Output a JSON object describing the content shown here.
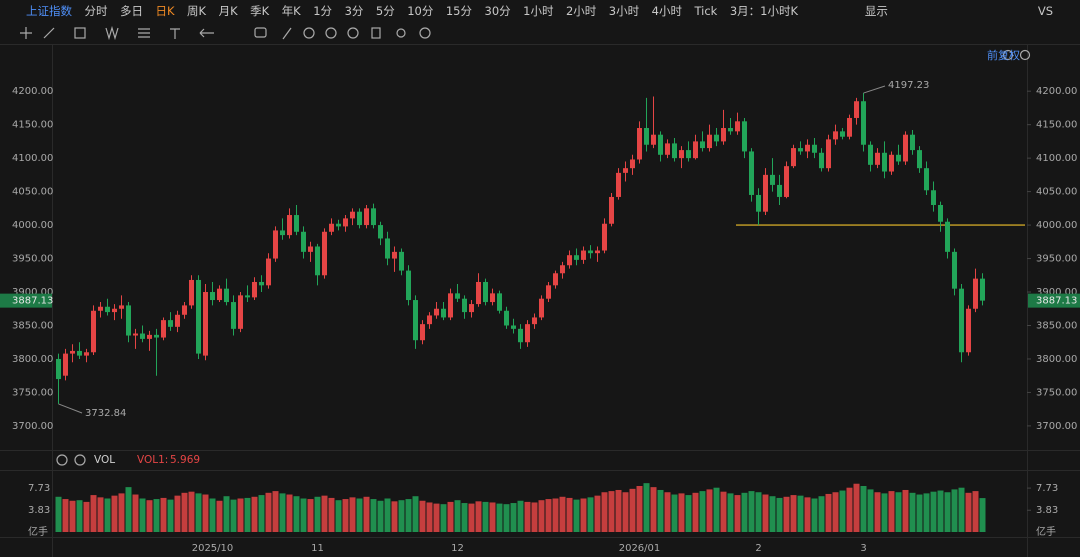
{
  "toolbar": {
    "symbol": "上证指数",
    "periods": [
      "分时",
      "多日",
      "日K",
      "周K",
      "月K",
      "季K",
      "年K",
      "1分",
      "3分",
      "5分",
      "10分",
      "15分",
      "30分",
      "1小时",
      "2小时",
      "3小时",
      "4小时",
      "Tick",
      "3月：1小时K"
    ],
    "display": "显示",
    "compare": "VS",
    "adjust": "前复权"
  },
  "chart_data": {
    "type": "candlestick",
    "up_color": "#e54545",
    "down_color": "#22a559",
    "ylim": [
      3664,
      4269
    ],
    "yticks": [
      {
        "value": 3700,
        "label": "3700.00"
      },
      {
        "value": 3750,
        "label": "3750.00"
      },
      {
        "value": 3800,
        "label": "3800.00"
      },
      {
        "value": 3850,
        "label": "3850.00"
      },
      {
        "value": 3900,
        "label": "3900.00"
      },
      {
        "value": 3950,
        "label": "3950.00"
      },
      {
        "value": 4000,
        "label": "4000.00"
      },
      {
        "value": 4050,
        "label": "4050.00"
      },
      {
        "value": 4100,
        "label": "4100.00"
      },
      {
        "value": 4150,
        "label": "4150.00"
      },
      {
        "value": 4200,
        "label": "4200.00"
      }
    ],
    "hline": {
      "value": 4000,
      "color": "#c9a227"
    },
    "categories": [
      null,
      null,
      null,
      null,
      null,
      null,
      null,
      null,
      null,
      null,
      null,
      null,
      null,
      null,
      null,
      null,
      null,
      null,
      null,
      null,
      null,
      null,
      "2025/10",
      null,
      null,
      null,
      null,
      null,
      null,
      null,
      null,
      null,
      null,
      null,
      null,
      null,
      null,
      "11",
      null,
      null,
      null,
      null,
      null,
      null,
      null,
      null,
      null,
      null,
      null,
      null,
      null,
      null,
      null,
      null,
      null,
      null,
      null,
      "12",
      null,
      null,
      null,
      null,
      null,
      null,
      null,
      null,
      null,
      null,
      null,
      null,
      null,
      null,
      null,
      null,
      null,
      null,
      null,
      null,
      null,
      null,
      null,
      null,
      null,
      "2026/01",
      null,
      null,
      null,
      null,
      null,
      null,
      null,
      null,
      null,
      null,
      null,
      null,
      null,
      null,
      null,
      null,
      "2",
      null,
      null,
      null,
      null,
      null,
      null,
      null,
      null,
      null,
      null,
      null,
      null,
      null,
      null,
      "3",
      null,
      null,
      null,
      null,
      null,
      null,
      null,
      null,
      null,
      null,
      null,
      null,
      null,
      null,
      null,
      null,
      null
    ],
    "candles": [
      [
        3800,
        3808,
        3732.84,
        3770
      ],
      [
        3775,
        3815,
        3768,
        3808
      ],
      [
        3808,
        3822,
        3795,
        3812
      ],
      [
        3812,
        3825,
        3800,
        3805
      ],
      [
        3805,
        3815,
        3795,
        3810
      ],
      [
        3810,
        3880,
        3806,
        3872
      ],
      [
        3872,
        3885,
        3862,
        3878
      ],
      [
        3878,
        3890,
        3865,
        3870
      ],
      [
        3870,
        3882,
        3858,
        3875
      ],
      [
        3875,
        3895,
        3860,
        3880
      ],
      [
        3880,
        3885,
        3825,
        3835
      ],
      [
        3835,
        3845,
        3815,
        3838
      ],
      [
        3838,
        3850,
        3825,
        3830
      ],
      [
        3830,
        3842,
        3812,
        3836
      ],
      [
        3836,
        3845,
        3775,
        3832
      ],
      [
        3832,
        3862,
        3828,
        3858
      ],
      [
        3858,
        3870,
        3842,
        3848
      ],
      [
        3848,
        3872,
        3840,
        3866
      ],
      [
        3866,
        3885,
        3860,
        3880
      ],
      [
        3880,
        3925,
        3875,
        3918
      ],
      [
        3918,
        3925,
        3800,
        3808
      ],
      [
        3805,
        3912,
        3798,
        3900
      ],
      [
        3900,
        3915,
        3880,
        3888
      ],
      [
        3888,
        3910,
        3885,
        3905
      ],
      [
        3905,
        3920,
        3880,
        3885
      ],
      [
        3885,
        3895,
        3835,
        3845
      ],
      [
        3845,
        3900,
        3840,
        3895
      ],
      [
        3895,
        3910,
        3885,
        3892
      ],
      [
        3892,
        3922,
        3888,
        3915
      ],
      [
        3915,
        3925,
        3900,
        3910
      ],
      [
        3910,
        3958,
        3905,
        3950
      ],
      [
        3950,
        3998,
        3945,
        3992
      ],
      [
        3992,
        4010,
        3978,
        3985
      ],
      [
        3985,
        4025,
        3980,
        4015
      ],
      [
        4015,
        4030,
        3985,
        3990
      ],
      [
        3990,
        3998,
        3950,
        3960
      ],
      [
        3960,
        3975,
        3945,
        3968
      ],
      [
        3968,
        3972,
        3910,
        3925
      ],
      [
        3925,
        3995,
        3920,
        3990
      ],
      [
        3990,
        4010,
        3985,
        4002
      ],
      [
        4002,
        4008,
        3992,
        3998
      ],
      [
        3998,
        4015,
        3990,
        4010
      ],
      [
        4010,
        4025,
        4000,
        4020
      ],
      [
        4020,
        4025,
        3995,
        4000
      ],
      [
        4000,
        4030,
        3995,
        4025
      ],
      [
        4025,
        4032,
        3995,
        4000
      ],
      [
        4000,
        4005,
        3970,
        3980
      ],
      [
        3980,
        3990,
        3940,
        3950
      ],
      [
        3950,
        3968,
        3930,
        3960
      ],
      [
        3960,
        3965,
        3925,
        3932
      ],
      [
        3932,
        3940,
        3880,
        3888
      ],
      [
        3888,
        3895,
        3815,
        3828
      ],
      [
        3828,
        3858,
        3822,
        3852
      ],
      [
        3852,
        3870,
        3845,
        3865
      ],
      [
        3865,
        3885,
        3860,
        3875
      ],
      [
        3875,
        3885,
        3858,
        3862
      ],
      [
        3862,
        3905,
        3858,
        3898
      ],
      [
        3898,
        3912,
        3885,
        3890
      ],
      [
        3890,
        3895,
        3860,
        3870
      ],
      [
        3870,
        3888,
        3862,
        3882
      ],
      [
        3882,
        3928,
        3878,
        3915
      ],
      [
        3915,
        3920,
        3880,
        3885
      ],
      [
        3885,
        3905,
        3880,
        3898
      ],
      [
        3898,
        3902,
        3868,
        3872
      ],
      [
        3872,
        3878,
        3845,
        3850
      ],
      [
        3850,
        3860,
        3838,
        3845
      ],
      [
        3845,
        3852,
        3815,
        3825
      ],
      [
        3825,
        3858,
        3818,
        3852
      ],
      [
        3852,
        3868,
        3845,
        3862
      ],
      [
        3862,
        3895,
        3858,
        3890
      ],
      [
        3890,
        3915,
        3885,
        3910
      ],
      [
        3910,
        3932,
        3905,
        3928
      ],
      [
        3928,
        3945,
        3920,
        3940
      ],
      [
        3940,
        3962,
        3935,
        3955
      ],
      [
        3955,
        3965,
        3940,
        3948
      ],
      [
        3948,
        3968,
        3942,
        3962
      ],
      [
        3962,
        3970,
        3950,
        3958
      ],
      [
        3958,
        3968,
        3945,
        3962
      ],
      [
        3962,
        4010,
        3958,
        4002
      ],
      [
        4002,
        4048,
        3998,
        4042
      ],
      [
        4042,
        4085,
        4038,
        4078
      ],
      [
        4078,
        4095,
        4065,
        4085
      ],
      [
        4085,
        4105,
        4075,
        4098
      ],
      [
        4098,
        4155,
        4092,
        4145
      ],
      [
        4145,
        4190,
        4110,
        4120
      ],
      [
        4120,
        4192,
        4115,
        4135
      ],
      [
        4135,
        4140,
        4095,
        4105
      ],
      [
        4105,
        4128,
        4100,
        4122
      ],
      [
        4122,
        4130,
        4095,
        4100
      ],
      [
        4100,
        4118,
        4085,
        4112
      ],
      [
        4112,
        4125,
        4095,
        4100
      ],
      [
        4100,
        4135,
        4098,
        4125
      ],
      [
        4125,
        4140,
        4110,
        4115
      ],
      [
        4115,
        4150,
        4110,
        4135
      ],
      [
        4135,
        4145,
        4118,
        4125
      ],
      [
        4125,
        4172,
        4120,
        4145
      ],
      [
        4145,
        4160,
        4135,
        4140
      ],
      [
        4140,
        4168,
        4135,
        4155
      ],
      [
        4155,
        4160,
        4100,
        4110
      ],
      [
        4110,
        4115,
        4035,
        4045
      ],
      [
        4045,
        4055,
        4000,
        4020
      ],
      [
        4020,
        4085,
        4015,
        4075
      ],
      [
        4075,
        4100,
        4050,
        4060
      ],
      [
        4060,
        4075,
        4030,
        4042
      ],
      [
        4042,
        4095,
        4040,
        4088
      ],
      [
        4088,
        4120,
        4085,
        4115
      ],
      [
        4115,
        4125,
        4105,
        4110
      ],
      [
        4110,
        4128,
        4100,
        4120
      ],
      [
        4120,
        4130,
        4100,
        4108
      ],
      [
        4108,
        4115,
        4080,
        4085
      ],
      [
        4085,
        4135,
        4080,
        4128
      ],
      [
        4128,
        4150,
        4120,
        4140
      ],
      [
        4140,
        4145,
        4128,
        4132
      ],
      [
        4132,
        4165,
        4128,
        4160
      ],
      [
        4160,
        4190,
        4150,
        4185
      ],
      [
        4185,
        4197.23,
        4110,
        4120
      ],
      [
        4120,
        4125,
        4080,
        4090
      ],
      [
        4090,
        4115,
        4085,
        4108
      ],
      [
        4108,
        4125,
        4070,
        4080
      ],
      [
        4080,
        4110,
        4075,
        4105
      ],
      [
        4105,
        4120,
        4090,
        4095
      ],
      [
        4095,
        4140,
        4090,
        4135
      ],
      [
        4135,
        4142,
        4105,
        4112
      ],
      [
        4112,
        4118,
        4078,
        4085
      ],
      [
        4085,
        4095,
        4045,
        4052
      ],
      [
        4052,
        4065,
        4020,
        4030
      ],
      [
        4030,
        4035,
        3990,
        4005
      ],
      [
        4005,
        4010,
        3950,
        3960
      ],
      [
        3960,
        3965,
        3895,
        3905
      ],
      [
        3905,
        3912,
        3795,
        3810
      ],
      [
        3810,
        3880,
        3805,
        3875
      ],
      [
        3875,
        3935,
        3870,
        3920
      ],
      [
        3920,
        3928,
        3880,
        3887.13
      ]
    ],
    "volume": {
      "name": "VOL",
      "indicator": "VOL1:",
      "unit": "亿手",
      "ylim": [
        0,
        9.86
      ],
      "yticks": [
        7.73,
        3.83
      ],
      "values": [
        6.2,
        5.8,
        5.5,
        5.6,
        5.3,
        6.5,
        6.1,
        5.9,
        6.4,
        6.8,
        7.9,
        6.6,
        5.9,
        5.6,
        5.8,
        6.0,
        5.7,
        6.4,
        6.9,
        7.1,
        6.8,
        6.6,
        5.9,
        5.5,
        6.3,
        5.7,
        5.9,
        6.0,
        6.2,
        6.5,
        6.9,
        7.2,
        6.8,
        6.6,
        6.3,
        5.9,
        5.8,
        6.2,
        6.4,
        6.0,
        5.6,
        5.8,
        6.1,
        5.9,
        6.2,
        5.8,
        5.5,
        5.9,
        5.4,
        5.6,
        5.8,
        6.3,
        5.5,
        5.2,
        5.0,
        4.9,
        5.3,
        5.6,
        5.1,
        5.0,
        5.4,
        5.3,
        5.2,
        5.0,
        4.9,
        5.1,
        5.5,
        5.3,
        5.2,
        5.6,
        5.8,
        5.9,
        6.2,
        6.0,
        5.7,
        5.9,
        6.1,
        6.4,
        7.0,
        7.2,
        7.4,
        7.0,
        7.6,
        8.1,
        8.6,
        7.9,
        7.4,
        7.0,
        6.6,
        6.8,
        6.5,
        6.9,
        7.2,
        7.5,
        7.8,
        7.1,
        6.8,
        6.5,
        6.9,
        7.2,
        7.0,
        6.6,
        6.3,
        6.0,
        6.2,
        6.5,
        6.4,
        6.1,
        5.9,
        6.3,
        6.7,
        7.0,
        7.3,
        7.8,
        8.5,
        8.1,
        7.5,
        7.0,
        6.8,
        7.2,
        7.0,
        7.4,
        6.9,
        6.6,
        6.8,
        7.1,
        7.3,
        7.0,
        7.5,
        7.8,
        6.9,
        7.2,
        5.969
      ]
    }
  }
}
